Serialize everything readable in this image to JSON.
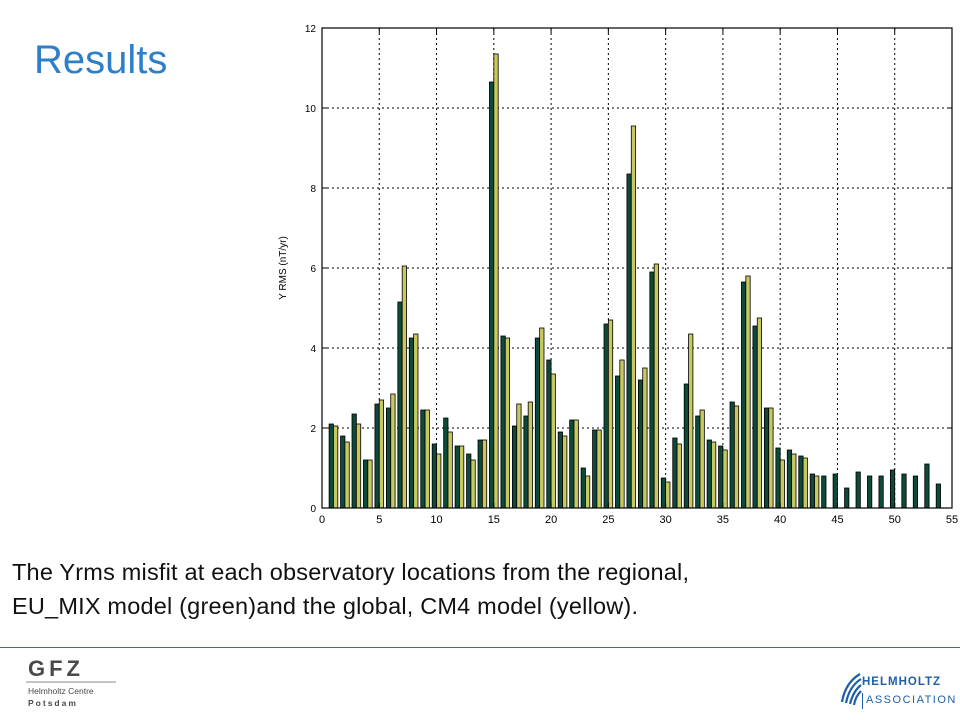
{
  "slide": {
    "title": "Results",
    "caption_line1": "The Yrms misfit at each observatory locations from the regional,",
    "caption_line2": "EU_MIX model (green)and the global, CM4 model (yellow)."
  },
  "logos": {
    "gfz_main": "GFZ",
    "gfz_sub1": "Helmholtz Centre",
    "gfz_sub2": "Potsdam",
    "helmholtz_1": "HELMHOLTZ",
    "helmholtz_2": "ASSOCIATION"
  },
  "colors": {
    "title": "#2f7fc8",
    "green_series": "#0d4a3a",
    "yellow_series": "#c8c860",
    "rule": "#2f6fb0",
    "brand_blue": "#1e5fa8"
  },
  "chart_data": {
    "type": "bar",
    "ylabel": "Y RMS (nT/yr)",
    "xlabel": "",
    "xlim": [
      0,
      55
    ],
    "ylim": [
      0,
      12
    ],
    "xticks": [
      0,
      5,
      10,
      15,
      20,
      25,
      30,
      35,
      40,
      45,
      50,
      55
    ],
    "yticks": [
      0,
      2,
      4,
      6,
      8,
      10,
      12
    ],
    "grid": true,
    "series": [
      {
        "color": "#0d4a3a",
        "x": [
          1,
          2,
          3,
          4,
          5,
          6,
          7,
          8,
          9,
          10,
          11,
          12,
          13,
          14,
          15,
          16,
          17,
          18,
          19,
          20,
          21,
          22,
          23,
          24,
          25,
          26,
          27,
          28,
          29,
          30,
          31,
          32,
          33,
          34,
          35,
          36,
          37,
          38,
          39,
          40,
          41,
          42,
          43,
          44,
          45,
          46,
          47,
          48,
          49,
          50,
          51,
          52,
          53,
          54
        ],
        "values": [
          2.1,
          1.8,
          2.35,
          1.2,
          2.6,
          2.5,
          5.15,
          4.25,
          2.45,
          1.6,
          2.25,
          1.55,
          1.35,
          1.7,
          10.65,
          4.3,
          2.05,
          2.3,
          4.25,
          3.7,
          1.9,
          2.2,
          1.0,
          1.95,
          4.6,
          3.3,
          8.35,
          3.2,
          5.9,
          0.75,
          1.75,
          3.1,
          2.3,
          1.7,
          1.55,
          2.65,
          5.65,
          4.55,
          2.5,
          1.5,
          1.45,
          1.3,
          0.85,
          0.8,
          0.85,
          0.5,
          0.9,
          0.8,
          0.8,
          0.95,
          0.85,
          0.8,
          1.1,
          0.6
        ]
      },
      {
        "color": "#c8c860",
        "x": [
          1,
          2,
          3,
          4,
          5,
          6,
          7,
          8,
          9,
          10,
          11,
          12,
          13,
          14,
          15,
          16,
          17,
          18,
          19,
          20,
          21,
          22,
          23,
          24,
          25,
          26,
          27,
          28,
          29,
          30,
          31,
          32,
          33,
          34,
          35,
          36,
          37,
          38,
          39,
          40,
          41,
          42,
          43
        ],
        "values": [
          2.05,
          1.65,
          2.1,
          1.2,
          2.7,
          2.85,
          6.05,
          4.35,
          2.45,
          1.35,
          1.9,
          1.55,
          1.2,
          1.7,
          11.35,
          4.25,
          2.6,
          2.65,
          4.5,
          3.35,
          1.8,
          2.2,
          0.8,
          1.95,
          4.7,
          3.7,
          9.55,
          3.5,
          6.1,
          0.65,
          1.6,
          4.35,
          2.45,
          1.65,
          1.45,
          2.55,
          5.8,
          4.75,
          2.5,
          1.2,
          1.35,
          1.25,
          0.8
        ]
      }
    ]
  }
}
